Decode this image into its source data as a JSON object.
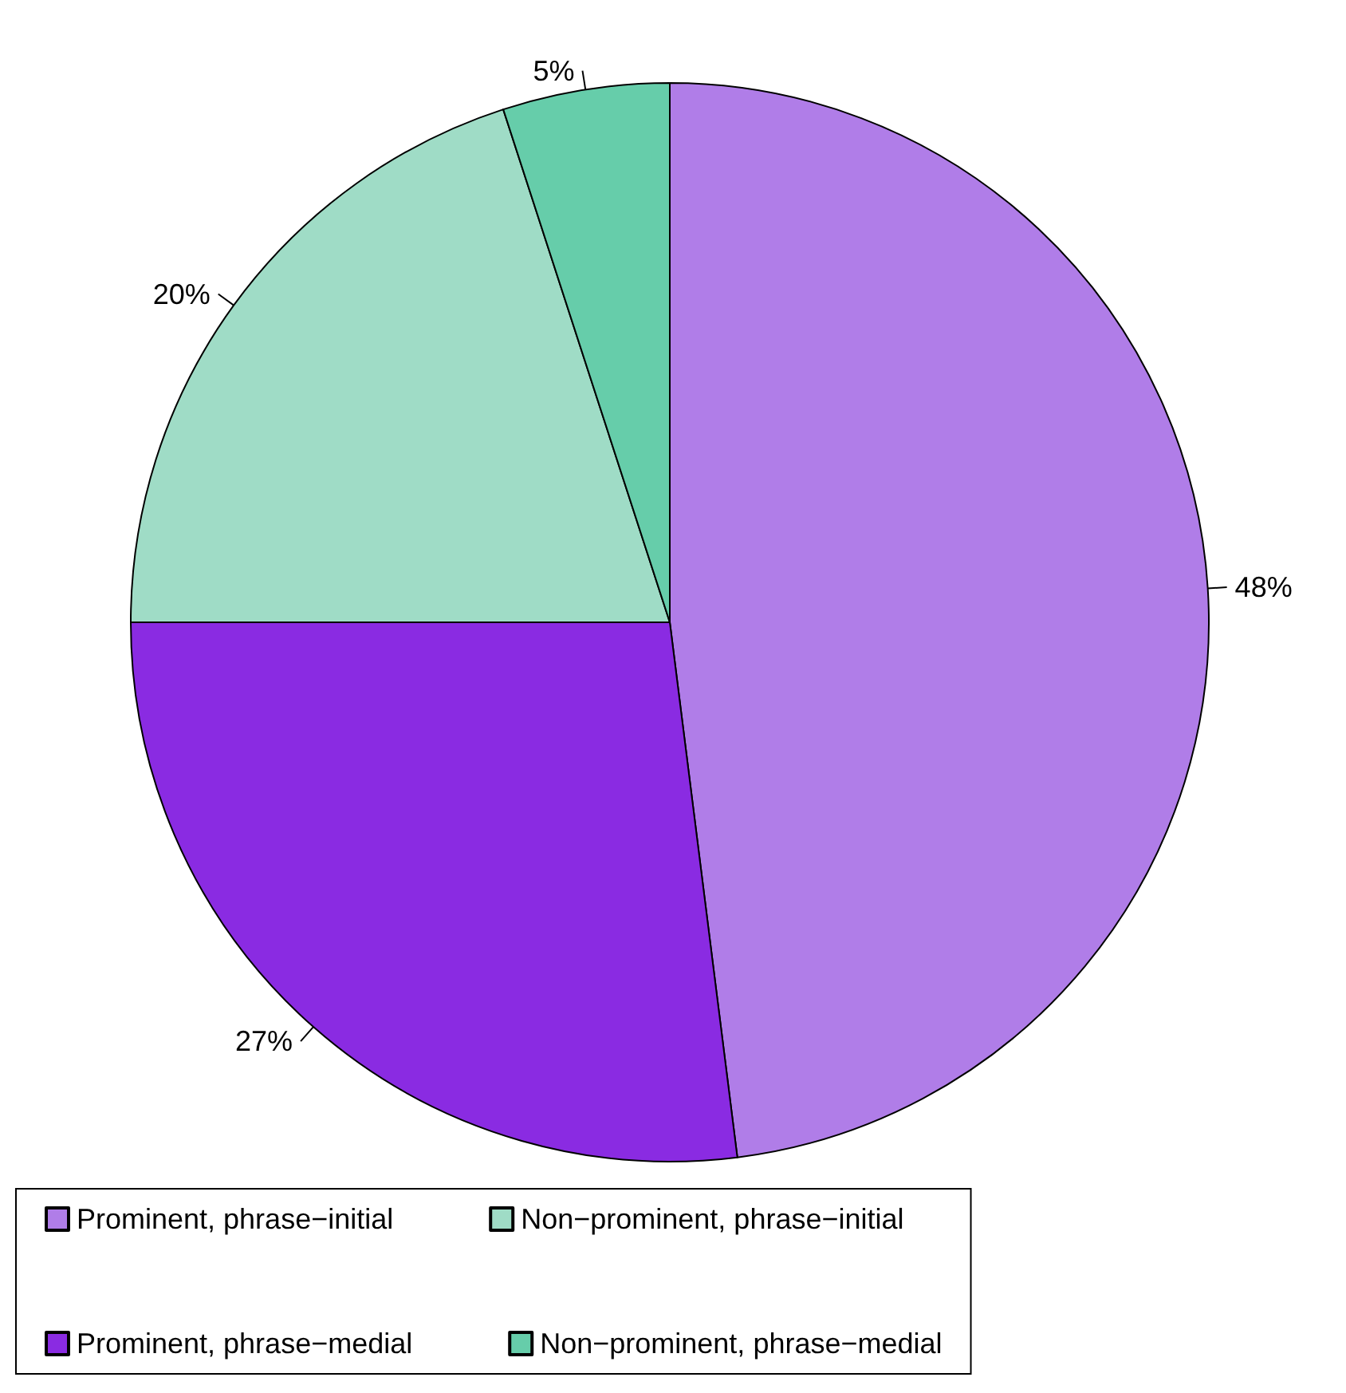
{
  "chart_data": {
    "type": "pie",
    "categories": [
      "Prominent, phrase−initial",
      "Prominent, phrase−medial",
      "Non−prominent, phrase−initial",
      "Non−prominent, phrase−medial"
    ],
    "values": [
      48,
      27,
      20,
      5
    ],
    "value_labels": [
      "48%",
      "27%",
      "20%",
      "5%"
    ],
    "colors": [
      "#b07de8",
      "#8a2be2",
      "#9fdcc6",
      "#66cdaa"
    ],
    "legend": "bottom"
  }
}
